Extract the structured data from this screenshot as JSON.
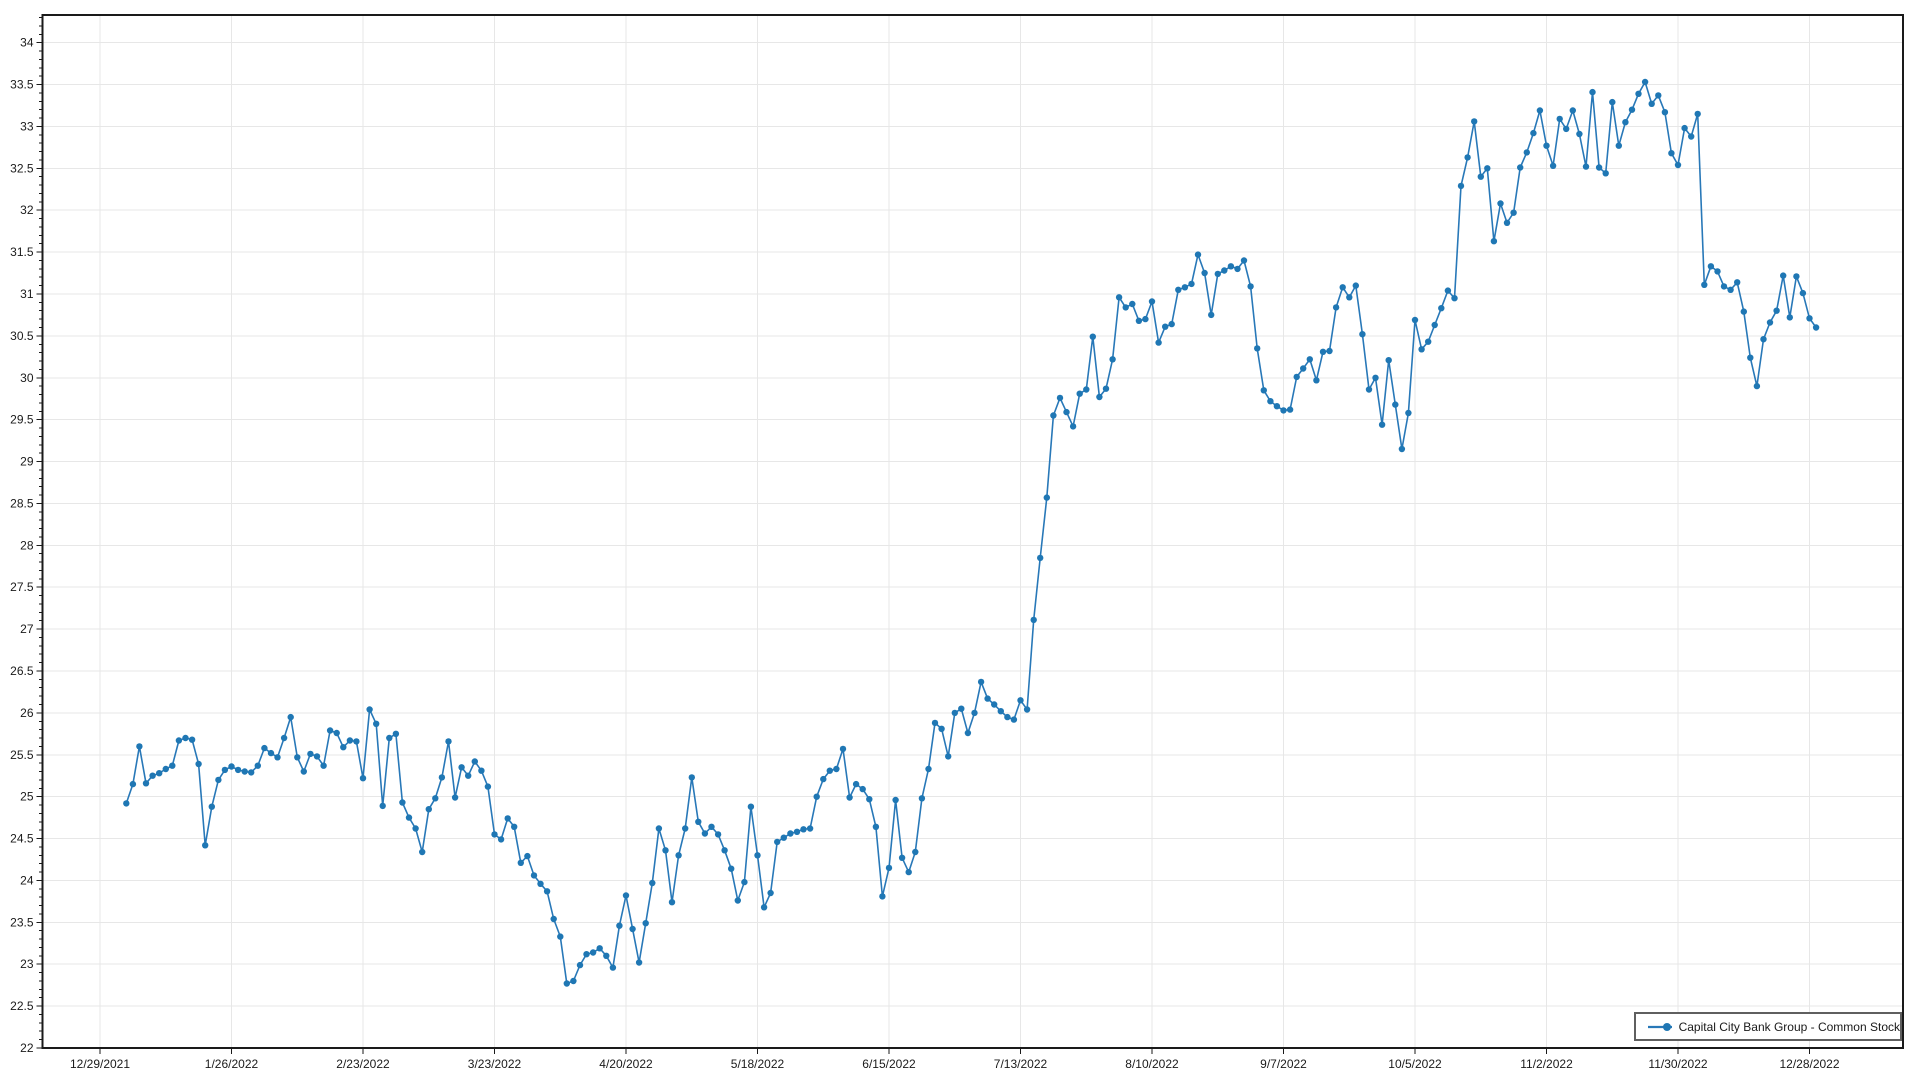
{
  "chart_data": {
    "type": "line",
    "title": "",
    "xlabel": "",
    "ylabel": "",
    "grid": true,
    "legend_position": "bottom-right",
    "x_tick_labels": [
      "12/29/2021",
      "1/26/2022",
      "2/23/2022",
      "3/23/2022",
      "4/20/2022",
      "5/18/2022",
      "6/15/2022",
      "7/13/2022",
      "8/10/2022",
      "9/7/2022",
      "10/5/2022",
      "11/2/2022",
      "11/30/2022",
      "12/28/2022"
    ],
    "trading_days_per_tick": 20,
    "series_start_day_offset": 4,
    "y_axis": {
      "min": 22,
      "max": 34,
      "step": 0.5,
      "minor_step": 0.1,
      "axis_top_value": 34.33
    },
    "ylim": [
      22,
      34.33
    ],
    "series": [
      {
        "name": "Capital City Bank Group - Common Stock",
        "color": "#2878b8",
        "marker_color": "#1f77b4",
        "values": [
          24.92,
          25.15,
          25.6,
          25.16,
          25.25,
          25.28,
          25.33,
          25.37,
          25.67,
          25.7,
          25.68,
          25.39,
          24.42,
          24.88,
          25.2,
          25.32,
          25.36,
          25.32,
          25.3,
          25.29,
          25.37,
          25.58,
          25.52,
          25.47,
          25.7,
          25.95,
          25.47,
          25.3,
          25.51,
          25.48,
          25.37,
          25.79,
          25.76,
          25.59,
          25.67,
          25.66,
          25.22,
          26.04,
          25.87,
          24.89,
          25.7,
          25.75,
          24.93,
          24.75,
          24.62,
          24.34,
          24.85,
          24.98,
          25.23,
          25.66,
          24.99,
          25.35,
          25.25,
          25.42,
          25.31,
          25.12,
          24.55,
          24.49,
          24.74,
          24.64,
          24.21,
          24.29,
          24.06,
          23.96,
          23.87,
          23.54,
          23.33,
          22.77,
          22.8,
          22.99,
          23.12,
          23.14,
          23.19,
          23.1,
          22.96,
          23.46,
          23.82,
          23.42,
          23.02,
          23.49,
          23.97,
          24.62,
          24.36,
          23.74,
          24.3,
          24.62,
          25.23,
          24.7,
          24.56,
          24.64,
          24.55,
          24.36,
          24.14,
          23.76,
          23.98,
          24.88,
          24.3,
          23.68,
          23.85,
          24.46,
          24.51,
          24.56,
          24.58,
          24.61,
          24.62,
          25.0,
          25.21,
          25.31,
          25.33,
          25.57,
          24.99,
          25.15,
          25.09,
          24.97,
          24.64,
          23.81,
          24.15,
          24.96,
          24.27,
          24.1,
          24.34,
          24.98,
          25.33,
          25.88,
          25.81,
          25.48,
          26.0,
          26.05,
          25.76,
          26.0,
          26.37,
          26.17,
          26.1,
          26.02,
          25.95,
          25.92,
          26.15,
          26.04,
          27.11,
          27.85,
          28.57,
          29.55,
          29.76,
          29.59,
          29.42,
          29.81,
          29.86,
          30.49,
          29.77,
          29.87,
          30.22,
          30.96,
          30.84,
          30.88,
          30.68,
          30.7,
          30.91,
          30.42,
          30.61,
          30.64,
          31.05,
          31.08,
          31.12,
          31.47,
          31.25,
          30.75,
          31.24,
          31.28,
          31.33,
          31.3,
          31.4,
          31.09,
          30.35,
          29.85,
          29.72,
          29.66,
          29.61,
          29.62,
          30.01,
          30.11,
          30.22,
          29.97,
          30.31,
          30.32,
          30.84,
          31.08,
          30.96,
          31.1,
          30.52,
          29.86,
          30.0,
          29.44,
          30.21,
          29.68,
          29.15,
          29.58,
          30.69,
          30.34,
          30.43,
          30.63,
          30.83,
          31.04,
          30.95,
          32.29,
          32.63,
          33.06,
          32.4,
          32.5,
          31.63,
          32.08,
          31.85,
          31.97,
          32.51,
          32.69,
          32.92,
          33.19,
          32.77,
          32.53,
          33.09,
          32.97,
          33.19,
          32.91,
          32.52,
          33.41,
          32.51,
          32.44,
          33.29,
          32.77,
          33.05,
          33.2,
          33.39,
          33.53,
          33.27,
          33.37,
          33.17,
          32.68,
          32.54,
          32.98,
          32.88,
          33.15,
          31.11,
          31.33,
          31.27,
          31.09,
          31.05,
          31.14,
          30.79,
          30.24,
          29.9,
          30.46,
          30.66,
          30.8,
          31.22,
          30.72,
          31.21,
          31.01,
          30.71,
          30.6
        ]
      }
    ],
    "colors": {
      "grid": "#e7e7e7",
      "axis": "#1a1a1a",
      "tick_label": "#1a1a1a",
      "legend_border": "#5f5f5f",
      "background": "#ffffff"
    }
  }
}
